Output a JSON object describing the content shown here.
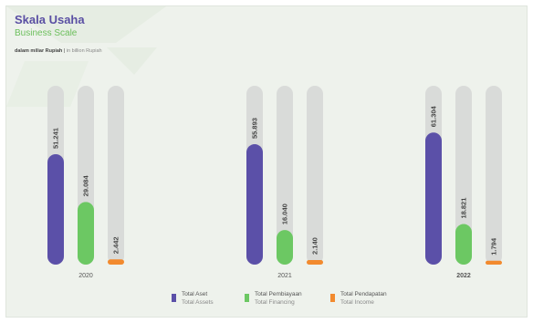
{
  "header": {
    "title": "Skala Usaha",
    "subtitle": "Business Scale",
    "unit_id": "dalam miliar Rupiah",
    "unit_sep": " | ",
    "unit_en": "in billion Rupiah"
  },
  "colors": {
    "total_aset": "#5b50a8",
    "total_pembiayaan": "#6cc863",
    "total_pendapatan": "#f28a2e",
    "track": "#d9dbd9",
    "background": "#eef2ec"
  },
  "chart_data": {
    "type": "bar",
    "categories": [
      "2020",
      "2021",
      "2022"
    ],
    "series": [
      {
        "name": "Total Aset",
        "name_en": "Total Assets",
        "values": [
          51241,
          55893,
          61304
        ],
        "labels": [
          "51.241",
          "55.893",
          "61.304"
        ]
      },
      {
        "name": "Total Pembiayaan",
        "name_en": "Total Financing",
        "values": [
          29084,
          16040,
          18821
        ],
        "labels": [
          "29.084",
          "16.040",
          "18.821"
        ]
      },
      {
        "name": "Total Pendapatan",
        "name_en": "Total Income",
        "values": [
          2442,
          2140,
          1794
        ],
        "labels": [
          "2.442",
          "2.140",
          "1.794"
        ]
      }
    ],
    "ylim": [
      0,
      83000
    ],
    "title": "Skala Usaha",
    "subtitle": "Business Scale",
    "legend_position": "bottom",
    "grid": false
  },
  "legend": [
    {
      "id": "Total Aset",
      "en": "Total Assets"
    },
    {
      "id": "Total Pembiayaan",
      "en": "Total Financing"
    },
    {
      "id": "Total Pendapatan",
      "en": "Total Income"
    }
  ]
}
